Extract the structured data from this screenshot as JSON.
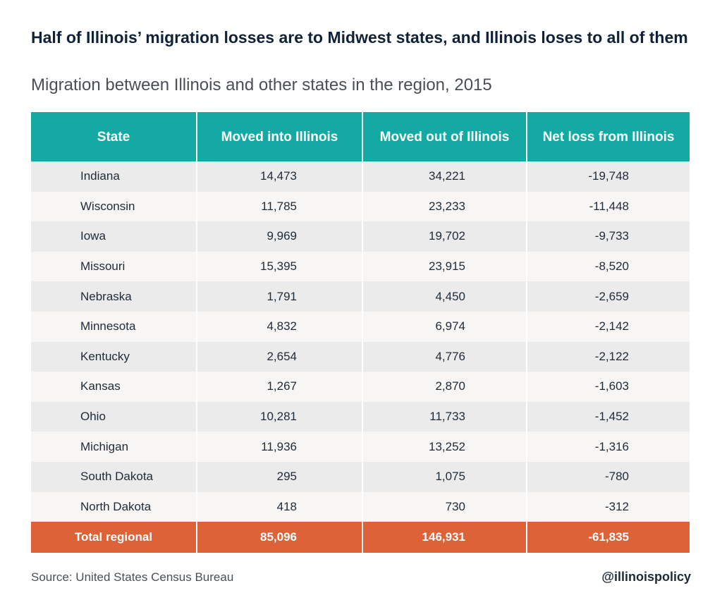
{
  "title": "Half of Illinois’ migration losses are to Midwest states, and Illinois loses to all of them",
  "subtitle": "Migration between Illinois and other states in the region, 2015",
  "chart_data": {
    "type": "table",
    "columns": [
      "State",
      "Moved into Illinois",
      "Moved out of Illinois",
      "Net loss from Illinois"
    ],
    "rows": [
      {
        "state": "Indiana",
        "moved_in": "14,473",
        "moved_out": "34,221",
        "net": "-19,748"
      },
      {
        "state": "Wisconsin",
        "moved_in": "11,785",
        "moved_out": "23,233",
        "net": "-11,448"
      },
      {
        "state": "Iowa",
        "moved_in": "9,969",
        "moved_out": "19,702",
        "net": "-9,733"
      },
      {
        "state": "Missouri",
        "moved_in": "15,395",
        "moved_out": "23,915",
        "net": "-8,520"
      },
      {
        "state": "Nebraska",
        "moved_in": "1,791",
        "moved_out": "4,450",
        "net": "-2,659"
      },
      {
        "state": "Minnesota",
        "moved_in": "4,832",
        "moved_out": "6,974",
        "net": "-2,142"
      },
      {
        "state": "Kentucky",
        "moved_in": "2,654",
        "moved_out": "4,776",
        "net": "-2,122"
      },
      {
        "state": "Kansas",
        "moved_in": "1,267",
        "moved_out": "2,870",
        "net": "-1,603"
      },
      {
        "state": "Ohio",
        "moved_in": "10,281",
        "moved_out": "11,733",
        "net": "-1,452"
      },
      {
        "state": "Michigan",
        "moved_in": "11,936",
        "moved_out": "13,252",
        "net": "-1,316"
      },
      {
        "state": "South Dakota",
        "moved_in": "295",
        "moved_out": "1,075",
        "net": "-780"
      },
      {
        "state": "North Dakota",
        "moved_in": "418",
        "moved_out": "730",
        "net": "-312"
      }
    ],
    "total": {
      "label": "Total regional",
      "moved_in": "85,096",
      "moved_out": "146,931",
      "net": "-61,835"
    }
  },
  "colors": {
    "header": "#14aaa3",
    "total_row": "#dd6238",
    "row_light": "#ebebeb",
    "row_lighter": "#f8f6f4"
  },
  "footer": {
    "source": "Source: United States Census Bureau",
    "handle": "@illinoispolicy"
  }
}
